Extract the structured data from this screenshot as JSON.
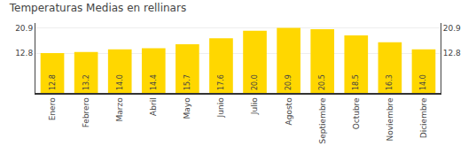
{
  "chart_data": {
    "type": "bar",
    "title": "Temperaturas Medias en rellinars",
    "categories": [
      "Enero",
      "Febrero",
      "Marzo",
      "Abril",
      "Mayo",
      "Junio",
      "Julio",
      "Agosto",
      "Septiembre",
      "Octubre",
      "Noviembre",
      "Diciembre"
    ],
    "values": [
      12.8,
      13.2,
      14.0,
      14.4,
      15.7,
      17.6,
      20.0,
      20.9,
      20.5,
      18.5,
      16.3,
      14.0
    ],
    "value_labels": [
      "12.8",
      "13.2",
      "14.0",
      "14.4",
      "15.7",
      "17.6",
      "20.0",
      "20.9",
      "20.5",
      "18.5",
      "16.3",
      "14.0"
    ],
    "data_labels": true,
    "color": "#FFD700",
    "ylim": [
      0,
      22.5
    ],
    "yticks": [
      12.8,
      20.9
    ],
    "y2lim": [
      0,
      22.5
    ],
    "y2ticks": [
      12.8,
      20.9
    ],
    "grid": true
  }
}
